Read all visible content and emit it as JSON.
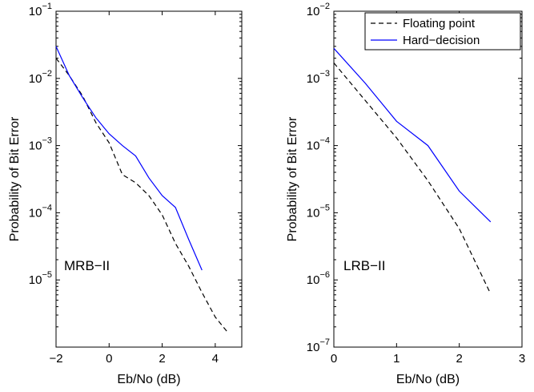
{
  "chart_data": [
    {
      "type": "line",
      "title": "",
      "xlabel": "Eb/No (dB)",
      "ylabel": "Probability of Bit Error",
      "annotation": "MRB−II",
      "xlim": [
        -2,
        5
      ],
      "ylim": [
        1e-06,
        0.1
      ],
      "yscale": "log",
      "grid": false,
      "legend": null,
      "xticks": [
        -2,
        0,
        2,
        4
      ],
      "xtick_labels": [
        "−2",
        "0",
        "2",
        "4"
      ],
      "yticks": [
        -5,
        -4,
        -3,
        -2,
        -1
      ],
      "series": [
        {
          "name": "Floating point",
          "color": "#000000",
          "style": "dashed",
          "x": [
            -2,
            -1.5,
            -1,
            -0.5,
            0,
            0.5,
            1,
            1.5,
            2,
            2.5,
            3,
            3.5,
            4,
            4.5
          ],
          "y": [
            0.02,
            0.011,
            0.0055,
            0.0022,
            0.0011,
            0.00037,
            0.00028,
            0.00018,
            9.3e-05,
            3.5e-05,
            1.6e-05,
            6.5e-06,
            2.8e-06,
            1.6e-06
          ]
        },
        {
          "name": "Hard−decision",
          "color": "#0000ff",
          "style": "solid",
          "x": [
            -2,
            -1.5,
            -1,
            -0.5,
            0,
            0.5,
            1,
            1.5,
            2,
            2.5,
            3,
            3.5
          ],
          "y": [
            0.03,
            0.011,
            0.0052,
            0.0026,
            0.0015,
            0.001,
            0.0007,
            0.00033,
            0.00018,
            0.00012,
            4e-05,
            1.4e-05
          ]
        }
      ]
    },
    {
      "type": "line",
      "title": "",
      "xlabel": "Eb/No (dB)",
      "ylabel": "Probability of Bit Error",
      "annotation": "LRB−II",
      "xlim": [
        0,
        3
      ],
      "ylim": [
        1e-07,
        0.01
      ],
      "yscale": "log",
      "grid": false,
      "legend": "top-right",
      "xticks": [
        0,
        1,
        2,
        3
      ],
      "xtick_labels": [
        "0",
        "1",
        "2",
        "3"
      ],
      "yticks": [
        -7,
        -6,
        -5,
        -4,
        -3,
        -2
      ],
      "series": [
        {
          "name": "Floating point",
          "color": "#000000",
          "style": "dashed",
          "x": [
            0,
            0.5,
            1,
            1.5,
            2,
            2.5
          ],
          "y": [
            0.0017,
            0.00047,
            0.00013,
            3e-05,
            5.8e-06,
            6.2e-07
          ]
        },
        {
          "name": "Hard−decision",
          "color": "#0000ff",
          "style": "solid",
          "x": [
            0,
            0.5,
            1,
            1.5,
            2,
            2.5
          ],
          "y": [
            0.0028,
            0.00085,
            0.00023,
            0.0001,
            2.1e-05,
            7.3e-06
          ]
        }
      ]
    }
  ]
}
